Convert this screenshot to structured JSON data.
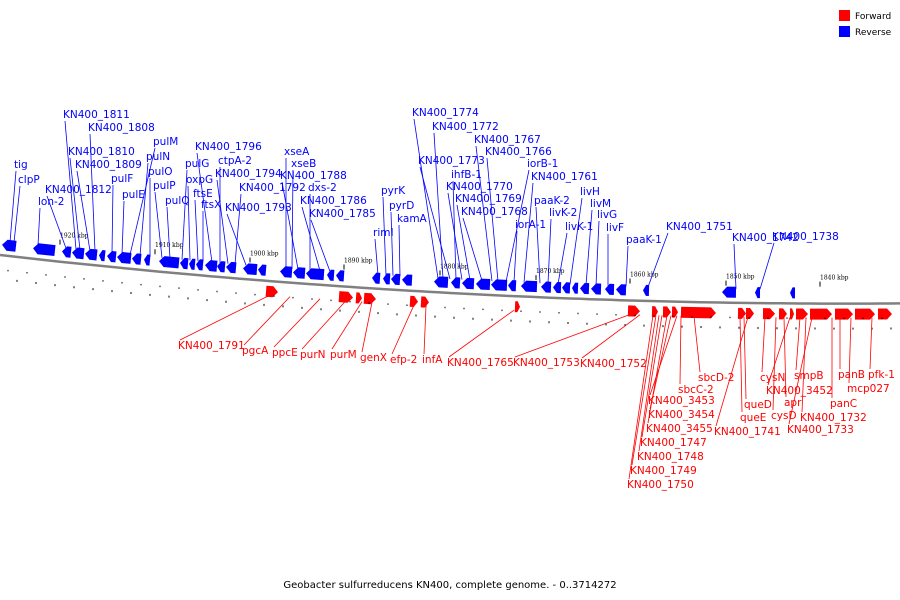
{
  "colors": {
    "forward": "#ff0000",
    "reverse": "#0000ff",
    "axis": "#808080",
    "text": "#000000"
  },
  "legend": [
    {
      "label": "Forward",
      "color": "#ff0000"
    },
    {
      "label": "Reverse",
      "color": "#0000ff"
    }
  ],
  "ticks": [
    "1920 kbp",
    "1910 kbp",
    "1900 kbp",
    "1890 kbp",
    "1880 kbp",
    "1870 kbp",
    "1860 kbp",
    "1850 kbp",
    "1840 kbp"
  ],
  "reverse_labels": [
    "tig",
    "clpP",
    "lon-2",
    "KN400_1812",
    "KN400_1811",
    "KN400_1810",
    "KN400_1809",
    "KN400_1808",
    "pulF",
    "pulE",
    "pulM",
    "pulN",
    "pulO",
    "pulP",
    "pulQ",
    "pulG",
    "oxpG",
    "ftsE",
    "ftsX",
    "KN400_1796",
    "ctpA-2",
    "KN400_1794",
    "KN400_1792",
    "KN400_1793",
    "xseA",
    "xseB",
    "KN400_1788",
    "dxs-2",
    "KN400_1786",
    "KN400_1785",
    "rimI",
    "pyrK",
    "pyrD",
    "kamA",
    "KN400_1774",
    "KN400_1772",
    "KN400_1773",
    "ihfB-1",
    "KN400_1770",
    "KN400_1769",
    "KN400_1768",
    "KN400_1767",
    "KN400_1766",
    "iorB-1",
    "KN400_1761",
    "iorA-1",
    "paaK-2",
    "livK-2",
    "livK-1",
    "livH",
    "livM",
    "livG",
    "livF",
    "paaK-1",
    "KN400_1751",
    "KN400_1742",
    "KN400_1738"
  ],
  "forward_labels": [
    "KN400_1791",
    "pgcA",
    "ppcE",
    "purN",
    "purM",
    "genX",
    "efp-2",
    "infA",
    "KN400_1765",
    "KN400_1753",
    "KN400_1752",
    "sbcD-2",
    "sbcC-2",
    "KN400_3453",
    "KN400_3454",
    "KN400_3455",
    "KN400_1747",
    "KN400_1748",
    "KN400_1749",
    "KN400_1750",
    "queD",
    "queE",
    "KN400_1741",
    "cysN",
    "apr",
    "cysD",
    "KN400_3452",
    "smpB",
    "KN400_1732",
    "KN400_1733",
    "panC",
    "panB",
    "mcp027",
    "pfk-1"
  ],
  "caption": "Geobacter sulfurreducens KN400, complete genome. - 0..3714272"
}
